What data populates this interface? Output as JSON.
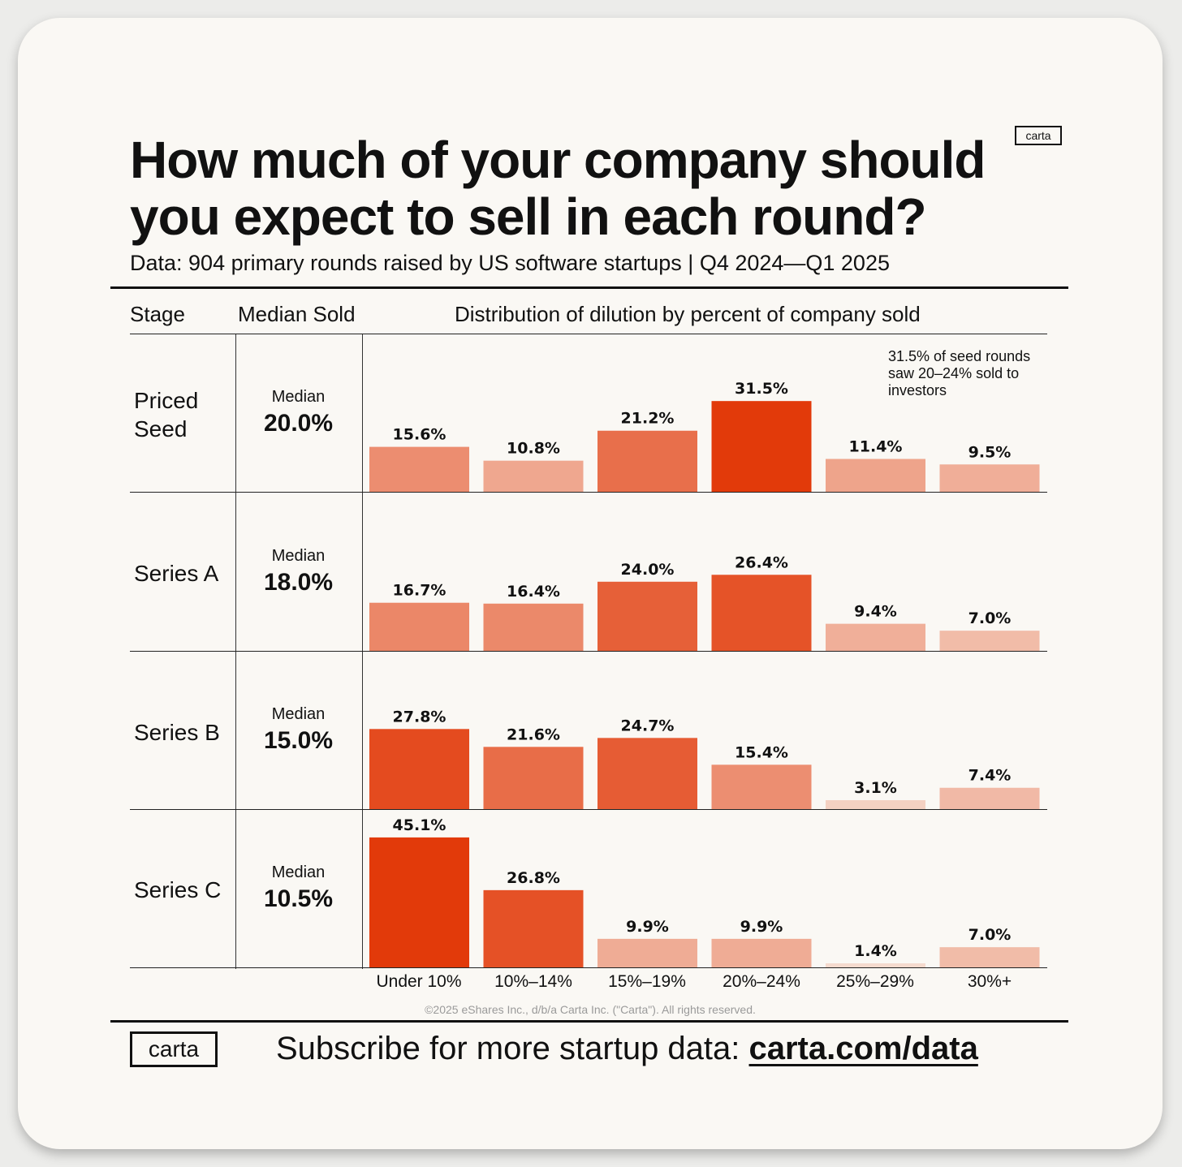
{
  "header": {
    "title": "How much of your company should you expect to sell in each round?",
    "subtitle": "Data: 904 primary rounds raised by US software startups | Q4 2024—Q1 2025",
    "logo_small": "carta"
  },
  "table_headers": {
    "stage": "Stage",
    "median": "Median Sold",
    "distribution": "Distribution of dilution by percent of company sold"
  },
  "annotation": "31.5% of seed rounds saw 20–24% sold to investors",
  "chart_data": {
    "type": "bar",
    "title": "How much of your company should you expect to sell in each round?",
    "categories": [
      "Under 10%",
      "10%–14%",
      "15%–19%",
      "20%–24%",
      "25%–29%",
      "30%+"
    ],
    "series": [
      {
        "name": "Priced Seed",
        "median_caption": "Median",
        "median": "20.0%",
        "values": [
          15.6,
          10.8,
          21.2,
          31.5,
          11.4,
          9.5
        ]
      },
      {
        "name": "Series A",
        "median_caption": "Median",
        "median": "18.0%",
        "values": [
          16.7,
          16.4,
          24.0,
          26.4,
          9.4,
          7.0
        ]
      },
      {
        "name": "Series B",
        "median_caption": "Median",
        "median": "15.0%",
        "values": [
          27.8,
          21.6,
          24.7,
          15.4,
          3.1,
          7.4
        ]
      },
      {
        "name": "Series C",
        "median_caption": "Median",
        "median": "10.5%",
        "values": [
          45.1,
          26.8,
          9.9,
          9.9,
          1.4,
          7.0
        ]
      }
    ]
  },
  "footer": {
    "copyright": "©2025 eShares Inc., d/b/a Carta Inc. (\"Carta\"). All rights reserved.",
    "logo": "carta",
    "subscribe_text": "Subscribe for more startup data: ",
    "subscribe_link": "carta.com/data"
  }
}
